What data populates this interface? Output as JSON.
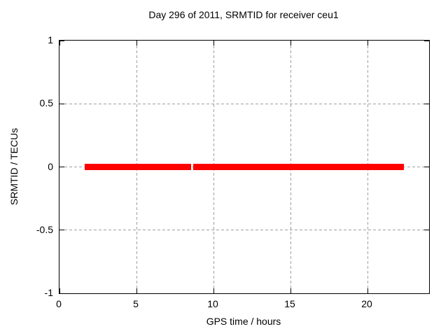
{
  "chart_data": {
    "type": "line",
    "title": "Day 296 of 2011, SRMTID for receiver ceu1",
    "xlabel": "GPS time / hours",
    "ylabel": "SRMTID / TECUs",
    "xlim": [
      0,
      24
    ],
    "ylim": [
      -1,
      1
    ],
    "xticks": [
      0,
      5,
      10,
      15,
      20
    ],
    "xtick_labels": [
      "0",
      "5",
      "10",
      "15",
      "20"
    ],
    "yticks": [
      -1,
      -0.5,
      0,
      0.5,
      1
    ],
    "ytick_labels": [
      "-1",
      "-0.5",
      "0",
      "0.5",
      "1"
    ],
    "grid": true,
    "legend_position": "none",
    "series": [
      {
        "name": "SRMTID",
        "color": "#ff0000",
        "y_value": 0,
        "segments_x": [
          [
            1.65,
            8.55
          ],
          [
            8.7,
            22.35
          ]
        ]
      }
    ]
  },
  "colors": {
    "background": "#ffffff",
    "frame": "#000000",
    "grid": "#a0a0a0",
    "text": "#000000",
    "series": "#ff0000"
  }
}
